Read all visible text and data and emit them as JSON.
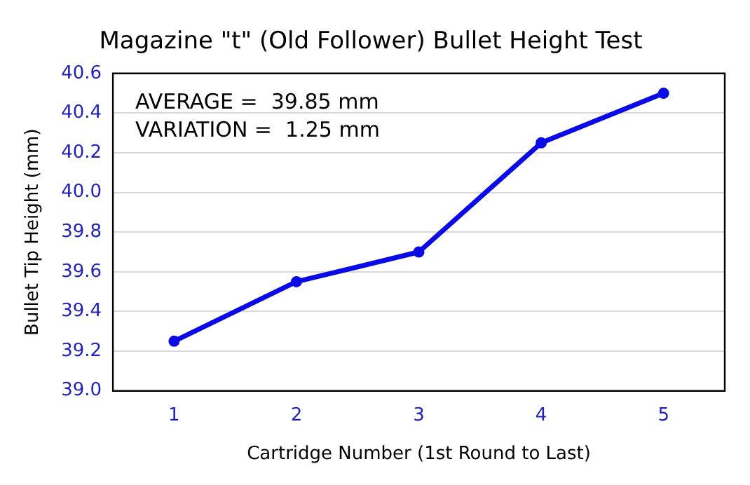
{
  "chart_data": {
    "type": "line",
    "title": "Magazine \"t\" (Old Follower) Bullet Height Test",
    "xlabel": "Cartridge Number (1st Round to Last)",
    "ylabel": "Bullet Tip Height (mm)",
    "categories": [
      "1",
      "2",
      "3",
      "4",
      "5"
    ],
    "series": [
      {
        "color": "#0a0ae6",
        "values": [
          39.25,
          39.55,
          39.7,
          40.25,
          40.5
        ]
      }
    ],
    "ylim": [
      39.0,
      40.6
    ],
    "yticks": [
      {
        "value": 39,
        "label": "39.0"
      },
      39.2,
      39.4,
      39.6,
      39.8,
      {
        "value": 40,
        "label": "40.0"
      },
      40.2,
      40.4,
      40.6
    ],
    "annotations": [
      "AVERAGE =  39.85 mm",
      "VARIATION =  1.25 mm"
    ],
    "grid": "y",
    "legend": false,
    "marker": "circle",
    "line_style": "solid"
  }
}
